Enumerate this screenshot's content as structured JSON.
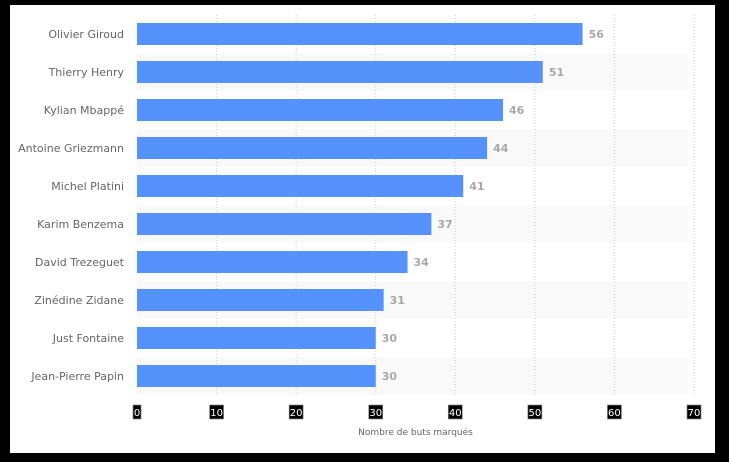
{
  "chart_data": {
    "type": "bar",
    "orientation": "horizontal",
    "title": "",
    "xlabel": "Nombre de buts marqués",
    "ylabel": "",
    "xlim": [
      0,
      70
    ],
    "xticks": [
      "0",
      "10",
      "20",
      "30",
      "40",
      "50",
      "60",
      "70"
    ],
    "grid": true,
    "categories": [
      "Olivier Giroud",
      "Thierry Henry",
      "Kylian Mbappé",
      "Antoine Griezmann",
      "Michel Platini",
      "Karim Benzema",
      "David Trezeguet",
      "Zinédine Zidane",
      "Just Fontaine",
      "Jean-Pierre Papin"
    ],
    "values": [
      56,
      51,
      46,
      44,
      41,
      37,
      34,
      31,
      30,
      30
    ],
    "colors": {
      "bar": "#5592fc",
      "label": "#a8a8a8",
      "stripe": "#f9f9f9",
      "grid": "#cccccc"
    }
  }
}
